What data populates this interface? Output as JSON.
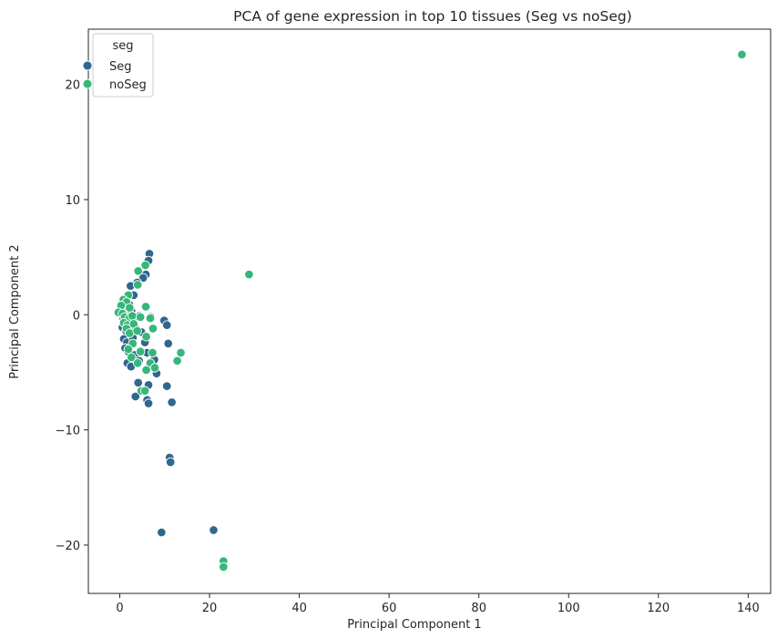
{
  "chart_data": {
    "type": "scatter",
    "title": "PCA of gene expression in top 10 tissues (Seg vs noSeg)",
    "xlabel": "Principal Component 1",
    "ylabel": "Principal Component 2",
    "xlim": [
      -7,
      145
    ],
    "ylim": [
      -24.2,
      24.8
    ],
    "xticks": [
      0,
      20,
      40,
      60,
      80,
      100,
      120,
      140
    ],
    "yticks": [
      -20,
      -10,
      0,
      10,
      20
    ],
    "grid": false,
    "legend": {
      "title": "seg",
      "position": "upper-left"
    },
    "series": [
      {
        "name": "Seg",
        "color": "#30678d",
        "points": [
          [
            6.6,
            5.3
          ],
          [
            6.4,
            4.7
          ],
          [
            5.8,
            3.5
          ],
          [
            5.2,
            3.2
          ],
          [
            3.9,
            2.8
          ],
          [
            2.4,
            2.5
          ],
          [
            3.1,
            1.7
          ],
          [
            1.6,
            1.5
          ],
          [
            0.9,
            1.1
          ],
          [
            1.2,
            0.8
          ],
          [
            2.1,
            0.9
          ],
          [
            0.5,
            0.6
          ],
          [
            0.3,
            0.1
          ],
          [
            1.3,
            0.2
          ],
          [
            2.6,
            0.3
          ],
          [
            0.8,
            -0.3
          ],
          [
            1.7,
            -0.5
          ],
          [
            3.3,
            -0.2
          ],
          [
            4.4,
            -0.1
          ],
          [
            6.9,
            -0.2
          ],
          [
            9.9,
            -0.5
          ],
          [
            10.5,
            -0.9
          ],
          [
            0.6,
            -1.1
          ],
          [
            1.4,
            -1.4
          ],
          [
            2.3,
            -1.6
          ],
          [
            3.6,
            -1.2
          ],
          [
            4.8,
            -1.5
          ],
          [
            0.9,
            -2.1
          ],
          [
            1.6,
            -2.4
          ],
          [
            2.9,
            -2.0
          ],
          [
            5.6,
            -2.4
          ],
          [
            10.8,
            -2.5
          ],
          [
            1.2,
            -2.9
          ],
          [
            1.9,
            -3.2
          ],
          [
            3.3,
            -3.5
          ],
          [
            6.1,
            -3.3
          ],
          [
            1.7,
            -4.2
          ],
          [
            2.5,
            -4.5
          ],
          [
            4.3,
            -4.0
          ],
          [
            7.7,
            -3.9
          ],
          [
            6.2,
            -4.7
          ],
          [
            8.2,
            -5.1
          ],
          [
            4.1,
            -5.9
          ],
          [
            6.4,
            -6.1
          ],
          [
            10.5,
            -6.2
          ],
          [
            3.5,
            -7.1
          ],
          [
            6.1,
            -7.4
          ],
          [
            6.4,
            -7.7
          ],
          [
            11.6,
            -7.6
          ],
          [
            11.1,
            -12.4
          ],
          [
            11.3,
            -12.8
          ],
          [
            9.3,
            -18.9
          ],
          [
            20.9,
            -18.7
          ]
        ]
      },
      {
        "name": "noSeg",
        "color": "#35b779",
        "points": [
          [
            138.6,
            22.6
          ],
          [
            28.8,
            3.5
          ],
          [
            5.7,
            4.3
          ],
          [
            4.1,
            3.8
          ],
          [
            4.0,
            2.6
          ],
          [
            1.9,
            1.7
          ],
          [
            0.8,
            1.3
          ],
          [
            1.5,
            1.1
          ],
          [
            0.3,
            0.8
          ],
          [
            2.2,
            0.6
          ],
          [
            5.8,
            0.7
          ],
          [
            -0.3,
            0.2
          ],
          [
            0.6,
            0.1
          ],
          [
            1.1,
            -0.2
          ],
          [
            2.1,
            -0.3
          ],
          [
            2.8,
            -0.1
          ],
          [
            4.6,
            -0.2
          ],
          [
            6.8,
            -0.3
          ],
          [
            0.9,
            -0.7
          ],
          [
            1.7,
            -0.9
          ],
          [
            3.1,
            -0.8
          ],
          [
            1.5,
            -1.2
          ],
          [
            2.2,
            -1.6
          ],
          [
            3.9,
            -1.4
          ],
          [
            7.4,
            -1.2
          ],
          [
            5.9,
            -1.9
          ],
          [
            2.9,
            -2.5
          ],
          [
            1.9,
            -3.0
          ],
          [
            4.6,
            -3.2
          ],
          [
            7.3,
            -3.3
          ],
          [
            13.6,
            -3.3
          ],
          [
            2.6,
            -3.7
          ],
          [
            4.0,
            -4.2
          ],
          [
            12.8,
            -4.0
          ],
          [
            6.8,
            -4.2
          ],
          [
            7.8,
            -4.6
          ],
          [
            5.9,
            -4.8
          ],
          [
            4.8,
            -6.6
          ],
          [
            5.6,
            -6.6
          ],
          [
            23.1,
            -21.4
          ],
          [
            23.1,
            -21.9
          ]
        ]
      }
    ]
  }
}
